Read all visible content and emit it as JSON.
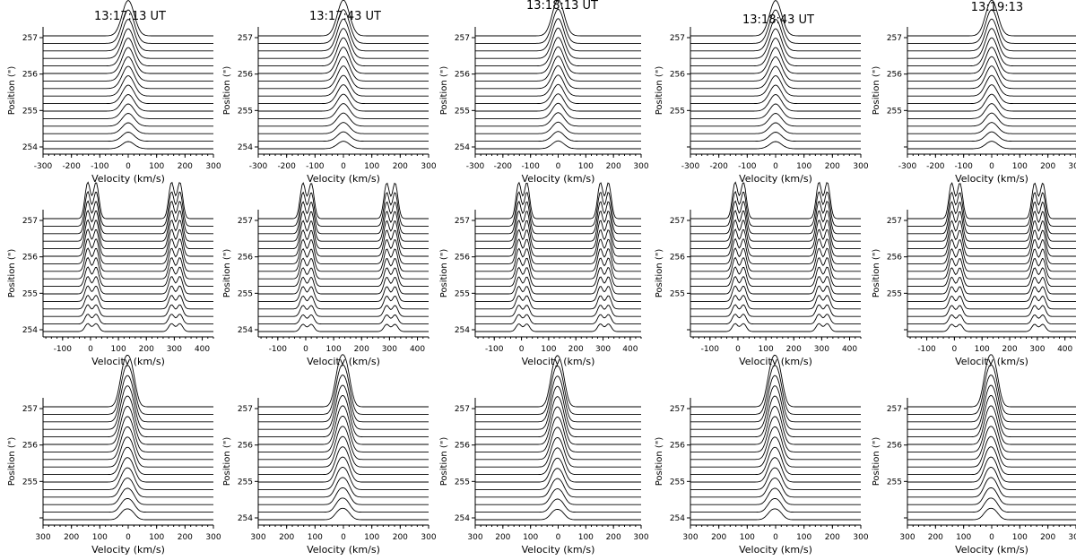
{
  "figure": {
    "description": "Stacked spectral line profiles at successive positions for five observation times"
  },
  "times": [
    "13:17:13 UT",
    "13:17:43 UT",
    "13:18:13 UT",
    "13:18:43 UT",
    "13:19:13"
  ],
  "chart_data": {
    "type": "line",
    "grid": false,
    "n_traces": 16,
    "position_range": [
      254.0,
      257.0
    ],
    "ylabel": "Position (\")",
    "xlabel": "Velocity (km/s)",
    "rows": [
      {
        "name": "single-line profiles",
        "xlim": [
          -300,
          300
        ],
        "x_ticks": [
          -300,
          -200,
          -100,
          0,
          100,
          200,
          300
        ],
        "x_tick_labels": [
          "-300",
          "-200",
          "-100",
          "0",
          "100",
          "200",
          "300"
        ],
        "components": [
          {
            "center": 0,
            "width": 30,
            "peak_amplitude": 1.0
          }
        ]
      },
      {
        "name": "double-line profiles",
        "xlim": [
          -170,
          440
        ],
        "x_ticks": [
          -100,
          0,
          100,
          200,
          300,
          400
        ],
        "x_tick_labels": [
          "-100",
          "0",
          "100",
          "200",
          "300",
          "400"
        ],
        "components": [
          {
            "center": -10,
            "width": 14,
            "peak_amplitude": 1.0
          },
          {
            "center": 20,
            "width": 14,
            "peak_amplitude": 1.0
          },
          {
            "center": 290,
            "width": 14,
            "peak_amplitude": 1.0
          },
          {
            "center": 320,
            "width": 14,
            "peak_amplitude": 1.0
          }
        ]
      },
      {
        "name": "reversed-axis profiles",
        "xlim": [
          300,
          -300
        ],
        "x_ticks": [
          300,
          200,
          100,
          0,
          -100,
          -200,
          -300
        ],
        "x_tick_labels": [
          "300",
          "200",
          "100",
          "0",
          "100",
          "200",
          "300"
        ],
        "components": [
          {
            "center": -10,
            "width": 22,
            "peak_amplitude": 1.0
          },
          {
            "center": 15,
            "width": 22,
            "peak_amplitude": 1.0
          }
        ]
      }
    ],
    "panels": [
      {
        "row": 0,
        "col": 0,
        "y_ticks": [
          "254",
          "255",
          "256",
          "257"
        ]
      },
      {
        "row": 0,
        "col": 1,
        "y_ticks": [
          "254",
          "255",
          "256",
          "257"
        ]
      },
      {
        "row": 0,
        "col": 2,
        "y_ticks": [
          "254",
          "255",
          "256",
          "257"
        ]
      },
      {
        "row": 0,
        "col": 3,
        "y_ticks": [
          "",
          "255",
          "256",
          "257"
        ]
      },
      {
        "row": 0,
        "col": 4,
        "y_ticks": [
          "",
          "255",
          "256",
          "257"
        ]
      },
      {
        "row": 1,
        "col": 0,
        "y_ticks": [
          "254",
          "255",
          "256",
          "257"
        ]
      },
      {
        "row": 1,
        "col": 1,
        "y_ticks": [
          "254",
          "255",
          "256",
          "257"
        ]
      },
      {
        "row": 1,
        "col": 2,
        "y_ticks": [
          "254",
          "255",
          "256",
          "257"
        ]
      },
      {
        "row": 1,
        "col": 3,
        "y_ticks": [
          "",
          "255",
          "256",
          "257"
        ]
      },
      {
        "row": 1,
        "col": 4,
        "y_ticks": [
          "",
          "255",
          "256",
          "257"
        ]
      },
      {
        "row": 2,
        "col": 0,
        "y_ticks": [
          "",
          "255",
          "256",
          "257"
        ]
      },
      {
        "row": 2,
        "col": 1,
        "y_ticks": [
          "254",
          "255",
          "256",
          "257"
        ]
      },
      {
        "row": 2,
        "col": 2,
        "y_ticks": [
          "254",
          "255",
          "256",
          "257"
        ]
      },
      {
        "row": 2,
        "col": 3,
        "y_ticks": [
          "254",
          "255",
          "256",
          "257"
        ]
      },
      {
        "row": 2,
        "col": 4,
        "y_ticks": [
          "",
          "255",
          "256",
          "257"
        ]
      }
    ]
  }
}
